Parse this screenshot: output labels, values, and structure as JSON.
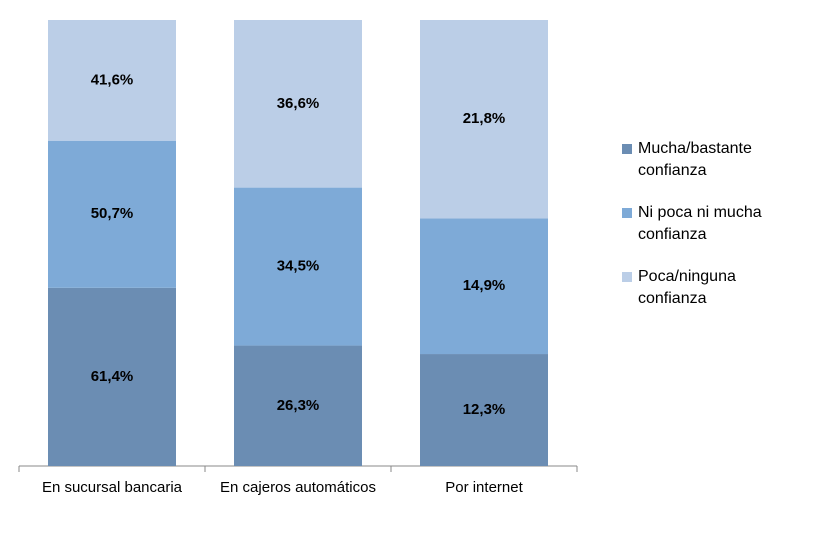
{
  "chart_data": {
    "type": "bar",
    "stack": "percent",
    "categories": [
      "En sucursal bancaria",
      "En cajeros automáticos",
      "Por internet"
    ],
    "series": [
      {
        "name": "Mucha/bastante confianza",
        "color": "#6b8db3",
        "values": [
          61.4,
          26.3,
          12.3
        ],
        "value_labels": [
          "61,4%",
          "26,3%",
          "12,3%"
        ]
      },
      {
        "name": "Ni poca ni mucha confianza",
        "color": "#7eaad7",
        "values": [
          50.7,
          34.5,
          14.9
        ],
        "value_labels": [
          "50,7%",
          "34,5%",
          "14,9%"
        ]
      },
      {
        "name": "Poca/ninguna confianza",
        "color": "#bbcee7",
        "values": [
          41.6,
          36.6,
          21.8
        ],
        "value_labels": [
          "41,6%",
          "36,6%",
          "21,8%"
        ]
      }
    ],
    "legend": "right"
  }
}
